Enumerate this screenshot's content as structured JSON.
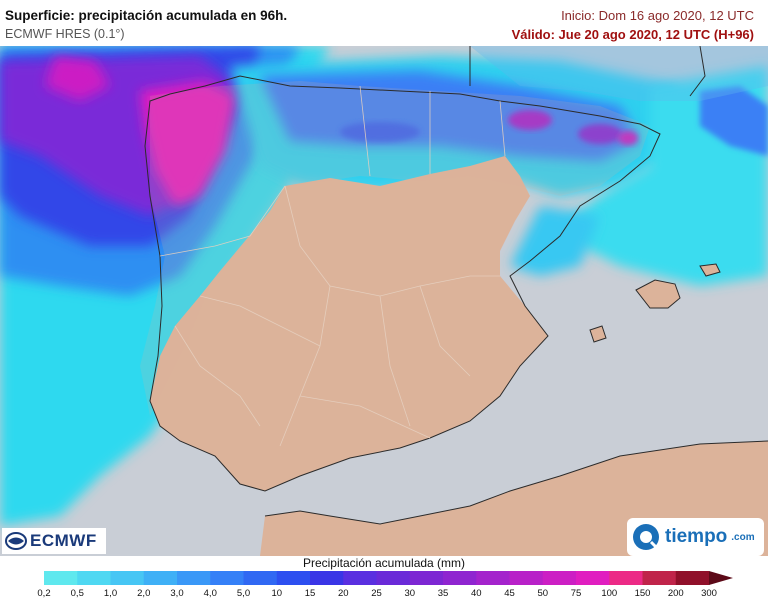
{
  "header": {
    "title": "Superficie: precipitación acumulada en 96h.",
    "subtitle": "ECMWF HRES (0.1°)",
    "init_time": "Inicio: Dom 16 ago 2020, 12 UTC",
    "valid_time": "Válido: Jue 20 ago 2020, 12 UTC (H+96)"
  },
  "logos": {
    "ecmwf": "ECMWF",
    "tiempo": "tiempo",
    "tiempo_domain": ".com"
  },
  "legend": {
    "title": "Precipitación acumulada (mm)",
    "ticks": [
      "0,2",
      "0,5",
      "1,0",
      "2,0",
      "3,0",
      "4,0",
      "5,0",
      "10",
      "15",
      "20",
      "25",
      "30",
      "35",
      "40",
      "45",
      "50",
      "75",
      "100",
      "150",
      "200",
      "300"
    ],
    "colors": [
      "#5fe8ee",
      "#4fd8f2",
      "#47c6f4",
      "#3fb0f6",
      "#3a98f7",
      "#3580f7",
      "#3068f3",
      "#2d4ff0",
      "#3a35e6",
      "#5a2fe0",
      "#6a2ad8",
      "#7d27d3",
      "#8f25d0",
      "#a423cc",
      "#b821c8",
      "#cc1fc4",
      "#e01ec0",
      "#ec2a86",
      "#c0244a",
      "#90102a",
      "#5c0a18"
    ],
    "units": "mm"
  },
  "map": {
    "region": "Península Ibérica y Baleares",
    "land_color": "#dcb39a",
    "sea_color": "#c9ced6",
    "border_color": "#e8d4c4"
  }
}
